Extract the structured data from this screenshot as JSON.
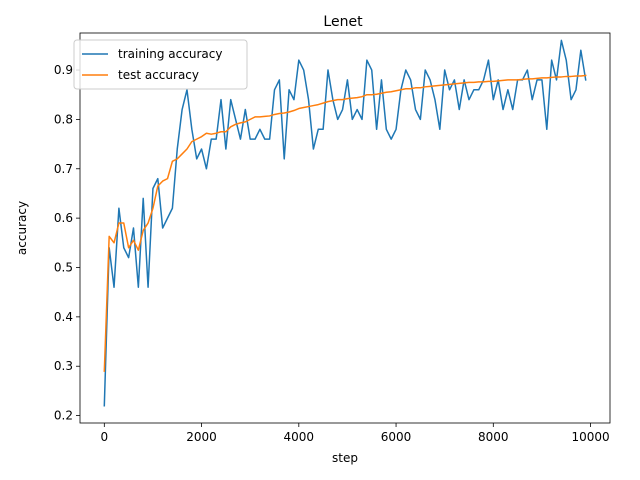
{
  "chart_data": {
    "type": "line",
    "title": "Lenet",
    "xlabel": "step",
    "ylabel": "accuracy",
    "xlim": [
      -500,
      10400
    ],
    "ylim": [
      0.185,
      0.975
    ],
    "xticks": [
      0,
      2000,
      4000,
      6000,
      8000,
      10000
    ],
    "xtick_labels": [
      "0",
      "2000",
      "4000",
      "6000",
      "8000",
      "10000"
    ],
    "yticks": [
      0.2,
      0.3,
      0.4,
      0.5,
      0.6,
      0.7,
      0.8,
      0.9
    ],
    "ytick_labels": [
      "0.2",
      "0.3",
      "0.4",
      "0.5",
      "0.6",
      "0.7",
      "0.8",
      "0.9"
    ],
    "grid": false,
    "legend_position": "top-left",
    "series": [
      {
        "name": "training accuracy",
        "color": "#1f77b4",
        "x": [
          0,
          100,
          200,
          300,
          400,
          500,
          600,
          700,
          800,
          900,
          1000,
          1100,
          1200,
          1300,
          1400,
          1500,
          1600,
          1700,
          1800,
          1900,
          2000,
          2100,
          2200,
          2300,
          2400,
          2500,
          2600,
          2700,
          2800,
          2900,
          3000,
          3100,
          3200,
          3300,
          3400,
          3500,
          3600,
          3700,
          3800,
          3900,
          4000,
          4100,
          4200,
          4300,
          4400,
          4500,
          4600,
          4700,
          4800,
          4900,
          5000,
          5100,
          5200,
          5300,
          5400,
          5500,
          5600,
          5700,
          5800,
          5900,
          6000,
          6100,
          6200,
          6300,
          6400,
          6500,
          6600,
          6700,
          6800,
          6900,
          7000,
          7100,
          7200,
          7300,
          7400,
          7500,
          7600,
          7700,
          7800,
          7900,
          8000,
          8100,
          8200,
          8300,
          8400,
          8500,
          8600,
          8700,
          8800,
          8900,
          9000,
          9100,
          9200,
          9300,
          9400,
          9500,
          9600,
          9700,
          9800,
          9900
        ],
        "y": [
          0.22,
          0.54,
          0.46,
          0.62,
          0.54,
          0.52,
          0.58,
          0.46,
          0.64,
          0.46,
          0.66,
          0.68,
          0.58,
          0.6,
          0.62,
          0.74,
          0.82,
          0.86,
          0.78,
          0.72,
          0.74,
          0.7,
          0.76,
          0.76,
          0.84,
          0.74,
          0.84,
          0.8,
          0.76,
          0.82,
          0.76,
          0.76,
          0.78,
          0.76,
          0.76,
          0.86,
          0.88,
          0.72,
          0.86,
          0.84,
          0.92,
          0.9,
          0.84,
          0.74,
          0.78,
          0.78,
          0.9,
          0.84,
          0.8,
          0.82,
          0.88,
          0.8,
          0.82,
          0.8,
          0.92,
          0.9,
          0.78,
          0.88,
          0.78,
          0.76,
          0.78,
          0.86,
          0.9,
          0.88,
          0.82,
          0.8,
          0.9,
          0.88,
          0.84,
          0.78,
          0.9,
          0.86,
          0.88,
          0.82,
          0.88,
          0.84,
          0.86,
          0.86,
          0.88,
          0.92,
          0.84,
          0.88,
          0.82,
          0.86,
          0.82,
          0.88,
          0.88,
          0.9,
          0.84,
          0.88,
          0.88,
          0.78,
          0.92,
          0.88,
          0.96,
          0.92,
          0.84,
          0.86,
          0.94,
          0.88
        ]
      },
      {
        "name": "test accuracy",
        "color": "#ff7f0e",
        "x": [
          0,
          100,
          200,
          300,
          400,
          500,
          600,
          700,
          800,
          900,
          1000,
          1100,
          1200,
          1300,
          1400,
          1500,
          1600,
          1700,
          1800,
          1900,
          2000,
          2100,
          2200,
          2300,
          2400,
          2500,
          2600,
          2700,
          2800,
          2900,
          3000,
          3100,
          3200,
          3300,
          3400,
          3500,
          3600,
          3700,
          3800,
          3900,
          4000,
          4100,
          4200,
          4300,
          4400,
          4500,
          4600,
          4700,
          4800,
          4900,
          5000,
          5100,
          5200,
          5300,
          5400,
          5500,
          5600,
          5700,
          5800,
          5900,
          6000,
          6100,
          6200,
          6300,
          6400,
          6500,
          6600,
          6700,
          6800,
          6900,
          7000,
          7100,
          7200,
          7300,
          7400,
          7500,
          7600,
          7700,
          7800,
          7900,
          8000,
          8100,
          8200,
          8300,
          8400,
          8500,
          8600,
          8700,
          8800,
          8900,
          9000,
          9100,
          9200,
          9300,
          9400,
          9500,
          9600,
          9700,
          9800,
          9900
        ],
        "y": [
          0.29,
          0.563,
          0.55,
          0.59,
          0.59,
          0.54,
          0.555,
          0.535,
          0.575,
          0.59,
          0.62,
          0.665,
          0.675,
          0.68,
          0.715,
          0.72,
          0.73,
          0.74,
          0.755,
          0.76,
          0.765,
          0.772,
          0.77,
          0.772,
          0.775,
          0.775,
          0.785,
          0.79,
          0.793,
          0.795,
          0.8,
          0.805,
          0.805,
          0.806,
          0.807,
          0.81,
          0.812,
          0.813,
          0.815,
          0.818,
          0.822,
          0.824,
          0.826,
          0.828,
          0.83,
          0.833,
          0.836,
          0.838,
          0.84,
          0.84,
          0.842,
          0.843,
          0.844,
          0.846,
          0.85,
          0.85,
          0.851,
          0.853,
          0.855,
          0.856,
          0.858,
          0.86,
          0.862,
          0.862,
          0.864,
          0.864,
          0.866,
          0.867,
          0.868,
          0.869,
          0.87,
          0.871,
          0.872,
          0.873,
          0.874,
          0.875,
          0.875,
          0.876,
          0.876,
          0.877,
          0.877,
          0.878,
          0.879,
          0.88,
          0.88,
          0.88,
          0.881,
          0.882,
          0.882,
          0.883,
          0.884,
          0.884,
          0.885,
          0.886,
          0.886,
          0.887,
          0.887,
          0.888,
          0.888,
          0.889
        ]
      }
    ]
  }
}
